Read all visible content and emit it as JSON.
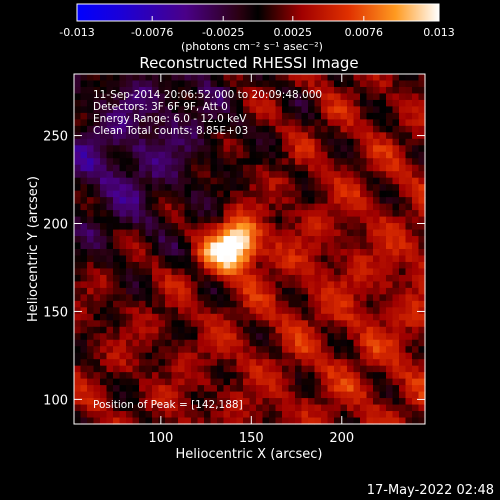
{
  "chart_data": {
    "type": "heatmap",
    "title": "Reconstructed RHESSI Image",
    "xlabel": "Heliocentric X (arcsec)",
    "ylabel": "Heliocentric Y (arcsec)",
    "xlim": [
      52,
      246
    ],
    "ylim": [
      86,
      285
    ],
    "x_ticks": [
      100,
      150,
      200
    ],
    "y_ticks": [
      100,
      150,
      200,
      250
    ],
    "colorbar": {
      "range": [
        -0.013,
        0.013
      ],
      "tick_values": [
        -0.013,
        -0.0076,
        -0.0025,
        0.0025,
        0.0076,
        0.013
      ],
      "tick_labels": [
        "-0.013",
        "-0.0076",
        "-0.0025",
        "0.0025",
        "0.0076",
        "0.013"
      ],
      "units_label": "(photons cm⁻² s⁻¹ asec⁻²)"
    },
    "annotations": [
      "11-Sep-2014 20:06:52.000 to 20:09:48.000",
      "Detectors: 3F 6F 9F, Att 0",
      "Energy Range: 6.0 - 12.0 keV",
      "Clean     Total counts: 8.85E+03"
    ],
    "peak_label": "Position of Peak = [142,188]",
    "peak": {
      "x": 142,
      "y": 188,
      "value": 0.013
    }
  },
  "footer": {
    "timestamp": "17-May-2022 02:48"
  }
}
